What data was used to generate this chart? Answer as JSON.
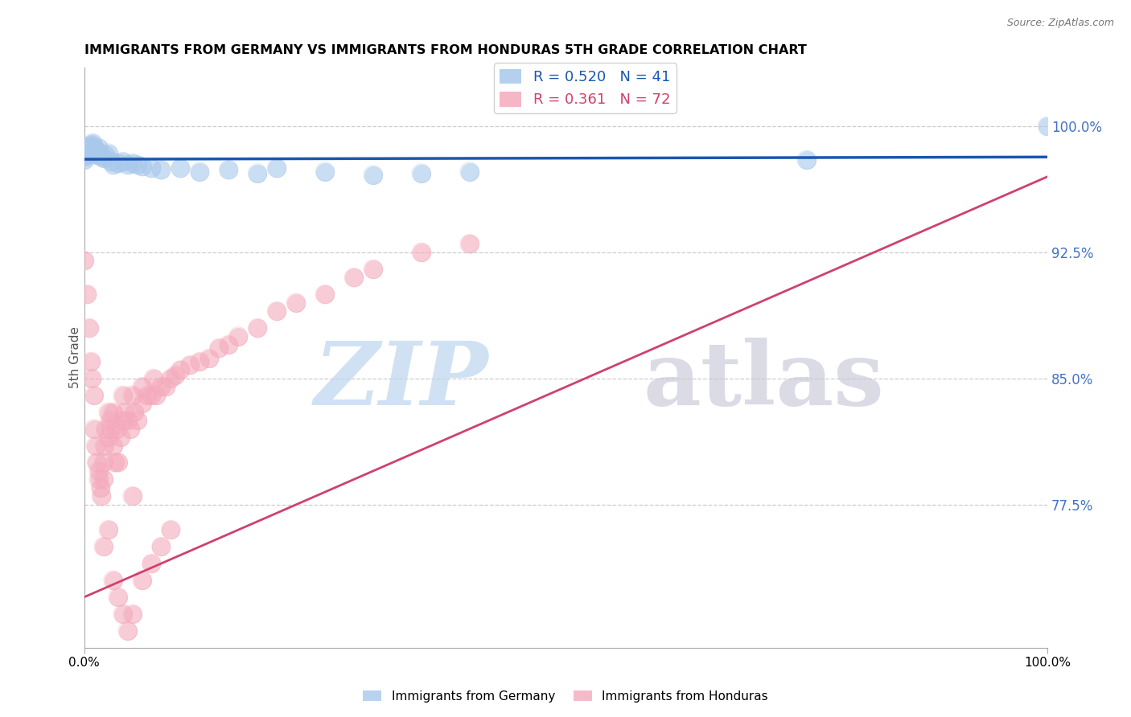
{
  "title": "IMMIGRANTS FROM GERMANY VS IMMIGRANTS FROM HONDURAS 5TH GRADE CORRELATION CHART",
  "source": "Source: ZipAtlas.com",
  "ylabel": "5th Grade",
  "yticks": [
    "77.5%",
    "85.0%",
    "92.5%",
    "100.0%"
  ],
  "ytick_vals": [
    0.775,
    0.85,
    0.925,
    1.0
  ],
  "xrange": [
    0.0,
    1.0
  ],
  "yrange": [
    0.69,
    1.035
  ],
  "legend_blue_r": "0.520",
  "legend_blue_n": "41",
  "legend_pink_r": "0.361",
  "legend_pink_n": "72",
  "germany_color": "#A8C8EC",
  "honduras_color": "#F4AABC",
  "germany_line_color": "#1A56B0",
  "honduras_line_color": "#D04070",
  "germany_x": [
    0.0,
    0.001,
    0.002,
    0.003,
    0.004,
    0.005,
    0.006,
    0.007,
    0.008,
    0.009,
    0.01,
    0.011,
    0.012,
    0.013,
    0.015,
    0.016,
    0.018,
    0.02,
    0.022,
    0.025,
    0.028,
    0.03,
    0.035,
    0.04,
    0.045,
    0.05,
    0.055,
    0.06,
    0.07,
    0.08,
    0.1,
    0.12,
    0.15,
    0.18,
    0.2,
    0.25,
    0.3,
    0.35,
    0.4,
    0.75,
    1.0
  ],
  "germany_y": [
    0.98,
    0.982,
    0.983,
    0.984,
    0.985,
    0.986,
    0.987,
    0.988,
    0.989,
    0.99,
    0.985,
    0.984,
    0.986,
    0.983,
    0.987,
    0.984,
    0.982,
    0.981,
    0.983,
    0.984,
    0.979,
    0.977,
    0.978,
    0.979,
    0.977,
    0.978,
    0.977,
    0.976,
    0.975,
    0.974,
    0.975,
    0.973,
    0.974,
    0.972,
    0.975,
    0.973,
    0.971,
    0.972,
    0.973,
    0.98,
    1.0
  ],
  "honduras_x": [
    0.0,
    0.003,
    0.005,
    0.007,
    0.008,
    0.01,
    0.01,
    0.012,
    0.013,
    0.015,
    0.015,
    0.017,
    0.018,
    0.02,
    0.02,
    0.021,
    0.022,
    0.025,
    0.025,
    0.027,
    0.028,
    0.03,
    0.03,
    0.032,
    0.034,
    0.035,
    0.038,
    0.04,
    0.04,
    0.042,
    0.045,
    0.048,
    0.05,
    0.052,
    0.055,
    0.06,
    0.06,
    0.065,
    0.07,
    0.072,
    0.075,
    0.08,
    0.085,
    0.09,
    0.095,
    0.1,
    0.11,
    0.12,
    0.13,
    0.14,
    0.15,
    0.16,
    0.18,
    0.2,
    0.22,
    0.25,
    0.28,
    0.3,
    0.35,
    0.4,
    0.02,
    0.025,
    0.03,
    0.035,
    0.04,
    0.045,
    0.05,
    0.06,
    0.07,
    0.08,
    0.09,
    0.05
  ],
  "honduras_y": [
    0.92,
    0.9,
    0.88,
    0.86,
    0.85,
    0.84,
    0.82,
    0.81,
    0.8,
    0.795,
    0.79,
    0.785,
    0.78,
    0.79,
    0.8,
    0.81,
    0.82,
    0.83,
    0.815,
    0.825,
    0.82,
    0.81,
    0.83,
    0.8,
    0.82,
    0.8,
    0.815,
    0.825,
    0.84,
    0.83,
    0.825,
    0.82,
    0.84,
    0.83,
    0.825,
    0.835,
    0.845,
    0.84,
    0.84,
    0.85,
    0.84,
    0.845,
    0.845,
    0.85,
    0.852,
    0.855,
    0.858,
    0.86,
    0.862,
    0.868,
    0.87,
    0.875,
    0.88,
    0.89,
    0.895,
    0.9,
    0.91,
    0.915,
    0.925,
    0.93,
    0.75,
    0.76,
    0.73,
    0.72,
    0.71,
    0.7,
    0.71,
    0.73,
    0.74,
    0.75,
    0.76,
    0.78
  ]
}
